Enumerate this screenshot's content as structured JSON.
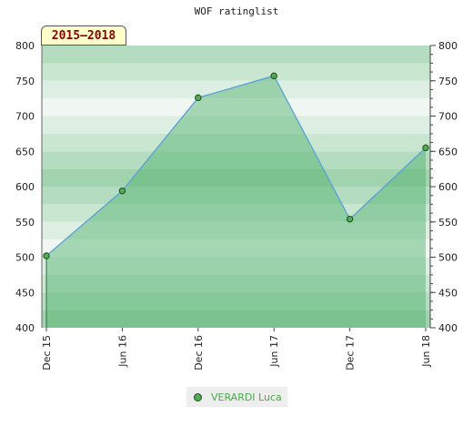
{
  "chart_data": {
    "type": "area",
    "title": "WOF ratinglist",
    "range_label": "2015–2018",
    "x": [
      "Dec 15",
      "Jun 16",
      "Dec 16",
      "Jun 17",
      "Dec 17",
      "Jun 18"
    ],
    "series": [
      {
        "name": "VERARDI Luca",
        "values": [
          502,
          594,
          726,
          757,
          554,
          655
        ]
      }
    ],
    "ylim": [
      400,
      800
    ],
    "yticks": [
      400,
      450,
      500,
      550,
      600,
      650,
      700,
      750,
      800
    ],
    "xlabel": "",
    "ylabel": "",
    "grid": true,
    "legend_position": "bottom",
    "colors": {
      "line": "#5aa0d8",
      "fill": "#4caf6a",
      "marker_fill": "#55aa55",
      "marker_stroke": "#1b4d1b",
      "band_dark": "#7cc48f",
      "band_light": "#f0f7f2"
    }
  }
}
